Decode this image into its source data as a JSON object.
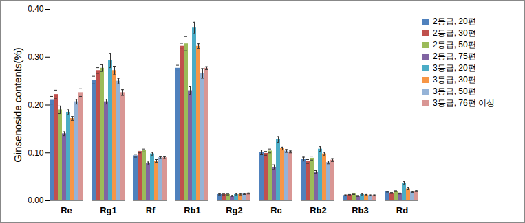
{
  "chart_data": {
    "type": "bar",
    "y_label": "Ginsenoside contents(%)",
    "categories": [
      "Re",
      "Rg1",
      "Rf",
      "Rb1",
      "Rg2",
      "Rc",
      "Rb2",
      "Rb3",
      "Rd"
    ],
    "series": [
      {
        "name": "2등급, 20편",
        "color": "#4F81BD",
        "values": [
          0.21,
          0.252,
          0.094,
          0.277,
          0.013,
          0.101,
          0.087,
          0.011,
          0.019
        ],
        "errors": [
          0.008,
          0.008,
          0.003,
          0.006,
          0.001,
          0.005,
          0.004,
          0.001,
          0.001
        ]
      },
      {
        "name": "2등급, 30편",
        "color": "#C0504D",
        "values": [
          0.222,
          0.272,
          0.103,
          0.323,
          0.013,
          0.099,
          0.082,
          0.012,
          0.016
        ],
        "errors": [
          0.009,
          0.006,
          0.003,
          0.006,
          0.001,
          0.004,
          0.004,
          0.001,
          0.001
        ]
      },
      {
        "name": "2등급, 50편",
        "color": "#9BBB59",
        "values": [
          0.19,
          0.277,
          0.105,
          0.328,
          0.013,
          0.104,
          0.089,
          0.014,
          0.02
        ],
        "errors": [
          0.008,
          0.007,
          0.003,
          0.015,
          0.001,
          0.004,
          0.004,
          0.001,
          0.001
        ]
      },
      {
        "name": "2등급, 75편",
        "color": "#8064A2",
        "values": [
          0.14,
          0.207,
          0.078,
          0.23,
          0.01,
          0.07,
          0.06,
          0.01,
          0.015
        ],
        "errors": [
          0.004,
          0.005,
          0.003,
          0.008,
          0.001,
          0.005,
          0.003,
          0.001,
          0.001
        ]
      },
      {
        "name": "3등급, 20편",
        "color": "#4BACC6",
        "values": [
          0.185,
          0.293,
          0.098,
          0.361,
          0.013,
          0.128,
          0.108,
          0.013,
          0.037
        ],
        "errors": [
          0.005,
          0.015,
          0.003,
          0.012,
          0.001,
          0.006,
          0.005,
          0.001,
          0.003
        ]
      },
      {
        "name": "3등급, 30편",
        "color": "#F79646",
        "values": [
          0.172,
          0.272,
          0.083,
          0.323,
          0.013,
          0.109,
          0.098,
          0.012,
          0.025
        ],
        "errors": [
          0.004,
          0.009,
          0.003,
          0.005,
          0.001,
          0.003,
          0.003,
          0.001,
          0.002
        ]
      },
      {
        "name": "3등급, 50편",
        "color": "#95B3D7",
        "values": [
          0.207,
          0.25,
          0.09,
          0.266,
          0.014,
          0.104,
          0.08,
          0.011,
          0.018
        ],
        "errors": [
          0.005,
          0.006,
          0.002,
          0.01,
          0.001,
          0.003,
          0.003,
          0.001,
          0.001
        ]
      },
      {
        "name": "3등급, 76편 이상",
        "color": "#D99694",
        "values": [
          0.226,
          0.226,
          0.09,
          0.277,
          0.015,
          0.102,
          0.085,
          0.011,
          0.02
        ],
        "errors": [
          0.008,
          0.006,
          0.002,
          0.003,
          0.001,
          0.002,
          0.003,
          0.001,
          0.001
        ]
      }
    ],
    "ylim": [
      0,
      0.4
    ],
    "yticks": [
      {
        "value": 0,
        "label": "0.00"
      },
      {
        "value": 0.1,
        "label": "0.10"
      },
      {
        "value": 0.2,
        "label": "0.20"
      },
      {
        "value": 0.3,
        "label": "0.30"
      },
      {
        "value": 0.4,
        "label": "0.40"
      }
    ],
    "grid": false,
    "legend": "right"
  }
}
